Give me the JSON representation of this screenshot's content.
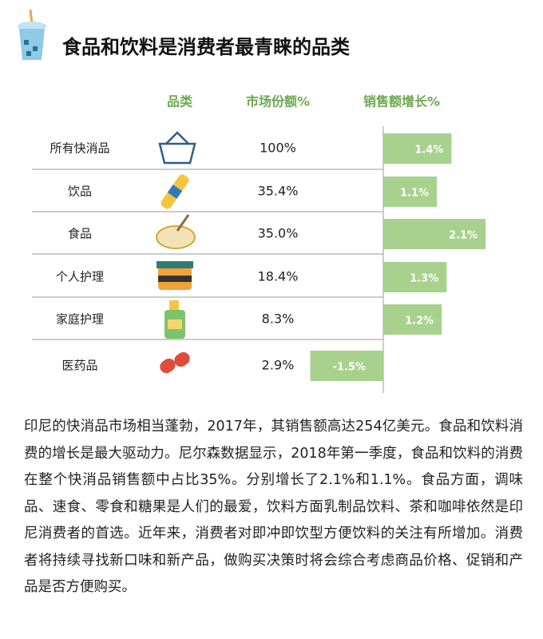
{
  "header": {
    "title": "食品和饮料是消费者最青睐的品类"
  },
  "table": {
    "columns": [
      "品类",
      "市场份额%",
      "销售额增长%"
    ],
    "rows": [
      {
        "category": "所有快消品",
        "share": "100%",
        "growth": 1.4,
        "growth_label": "1.4%"
      },
      {
        "category": "饮品",
        "share": "35.4%",
        "growth": 1.1,
        "growth_label": "1.1%"
      },
      {
        "category": "食品",
        "share": "35.0%",
        "growth": 2.1,
        "growth_label": "2.1%"
      },
      {
        "category": "个人护理",
        "share": "18.4%",
        "growth": 1.3,
        "growth_label": "1.3%"
      },
      {
        "category": "家庭护理",
        "share": "8.3%",
        "growth": 1.2,
        "growth_label": "1.2%"
      },
      {
        "category": "医药品",
        "share": "2.9%",
        "growth": -1.5,
        "growth_label": "-1.5%"
      }
    ],
    "bar_color": "#a9d18e"
  },
  "paragraph": "印尼的快消品市场相当蓬勃，2017年，其销售额高达254亿美元。食品和饮料消费的增长是最大驱动力。尼尔森数据显示，2018年第一季度，食品和饮料的消费在整个快消品销售额中占比35%。分别增长了2.1%和1.1%。食品方面，调味品、速食、零食和糖果是人们的最爱，饮料方面乳制品饮料、茶和咖啡依然是印尼消费者的首选。近年来，消费者对即冲即饮型方便饮料的关注有所增加。消费者将持续寻找新口味和新产品，做购买决策时将会综合考虑商品价格、促销和产品是否方便购买。"
}
